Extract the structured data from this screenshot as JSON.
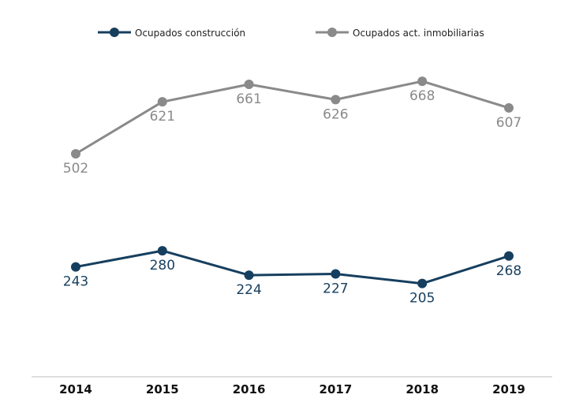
{
  "chart_data": {
    "type": "line",
    "title": "",
    "xlabel": "",
    "ylabel": "",
    "categories": [
      "2014",
      "2015",
      "2016",
      "2017",
      "2018",
      "2019"
    ],
    "series": [
      {
        "name": "Ocupados construcción",
        "values": [
          243,
          280,
          224,
          227,
          205,
          268
        ],
        "color": "#163f5f"
      },
      {
        "name": "Ocupados act. inmobiliarias",
        "values": [
          502,
          621,
          661,
          626,
          668,
          607
        ],
        "color": "#8a8a8a"
      }
    ],
    "ylim": [
      60,
      800
    ],
    "grid": false,
    "legend_position": "top"
  }
}
